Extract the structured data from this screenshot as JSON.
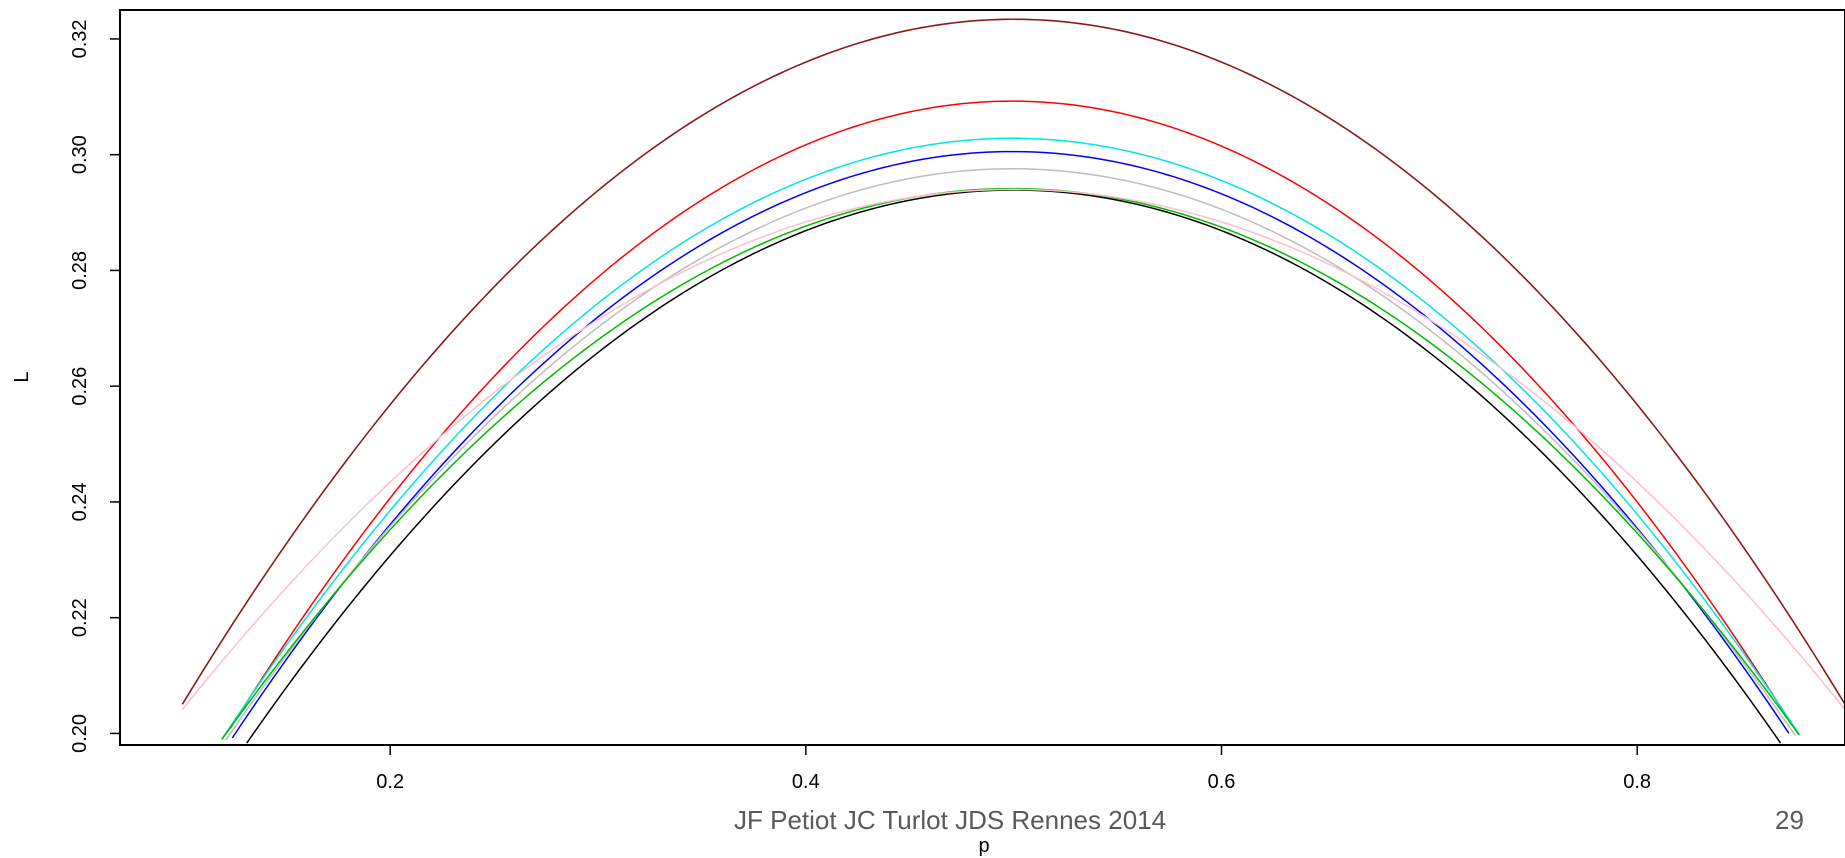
{
  "chart_data": {
    "type": "line",
    "title": "",
    "xlabel": "p",
    "ylabel": "L",
    "xlim": [
      0.07,
      0.9
    ],
    "ylim": [
      0.198,
      0.325
    ],
    "xticks": [
      0.2,
      0.4,
      0.6,
      0.8
    ],
    "xtick_labels": [
      "0.2",
      "0.4",
      "0.6",
      "0.8"
    ],
    "yticks": [
      0.2,
      0.22,
      0.24,
      0.26,
      0.28,
      0.3,
      0.32
    ],
    "ytick_labels": [
      "0.20",
      "0.22",
      "0.24",
      "0.26",
      "0.28",
      "0.30",
      "0.32"
    ],
    "grid": false,
    "legend": "none",
    "series": [
      {
        "color": "#8b1a1a",
        "x": [
          0.1,
          0.2,
          0.3,
          0.4,
          0.5,
          0.6,
          0.7,
          0.8,
          0.9
        ],
        "y": [
          0.2025,
          0.2605,
          0.2961,
          0.3141,
          0.3203,
          0.3141,
          0.2961,
          0.2605,
          0.2025
        ]
      },
      {
        "color": "#ff0000",
        "x": [
          0.123,
          0.2,
          0.3,
          0.4,
          0.5,
          0.6,
          0.7,
          0.8,
          0.874
        ],
        "y": [
          0.198,
          0.2444,
          0.2815,
          0.2996,
          0.3059,
          0.2996,
          0.2815,
          0.2444,
          0.198
        ]
      },
      {
        "color": "#00e5e5",
        "x": [
          0.119,
          0.2,
          0.3,
          0.4,
          0.5,
          0.6,
          0.7,
          0.8,
          0.878
        ],
        "y": [
          0.198,
          0.2395,
          0.2764,
          0.2946,
          0.3005,
          0.2946,
          0.2764,
          0.2395,
          0.198
        ]
      },
      {
        "color": "#0000ff",
        "x": [
          0.124,
          0.2,
          0.3,
          0.4,
          0.5,
          0.6,
          0.7,
          0.8,
          0.873
        ],
        "y": [
          0.198,
          0.2375,
          0.2738,
          0.2922,
          0.2985,
          0.2922,
          0.2738,
          0.2375,
          0.198
        ]
      },
      {
        "color": "#bebebe",
        "x": [
          0.121,
          0.2,
          0.3,
          0.4,
          0.5,
          0.6,
          0.7,
          0.8,
          0.876
        ],
        "y": [
          0.198,
          0.2368,
          0.2718,
          0.2897,
          0.2958,
          0.2897,
          0.2718,
          0.2368,
          0.198
        ]
      },
      {
        "color": "#000000",
        "x": [
          0.131,
          0.2,
          0.3,
          0.4,
          0.5,
          0.6,
          0.7,
          0.8,
          0.869
        ],
        "y": [
          0.198,
          0.2305,
          0.2676,
          0.2863,
          0.2926,
          0.2863,
          0.2676,
          0.2305,
          0.198
        ]
      },
      {
        "color": "#00bb00",
        "x": [
          0.119,
          0.2,
          0.3,
          0.4,
          0.5,
          0.6,
          0.7,
          0.8,
          0.878
        ],
        "y": [
          0.198,
          0.2362,
          0.27,
          0.2865,
          0.292,
          0.2865,
          0.27,
          0.2362,
          0.198
        ]
      },
      {
        "color": "#ffc0cb",
        "x": [
          0.1,
          0.2,
          0.3,
          0.4,
          0.5,
          0.6,
          0.7,
          0.8,
          0.9
        ],
        "y": [
          0.203,
          0.2447,
          0.2733,
          0.2877,
          0.2915,
          0.2877,
          0.2733,
          0.2447,
          0.203
        ]
      }
    ]
  },
  "footer": {
    "text": "JF Petiot JC Turlot JDS Rennes 2014",
    "page_number": "29"
  }
}
